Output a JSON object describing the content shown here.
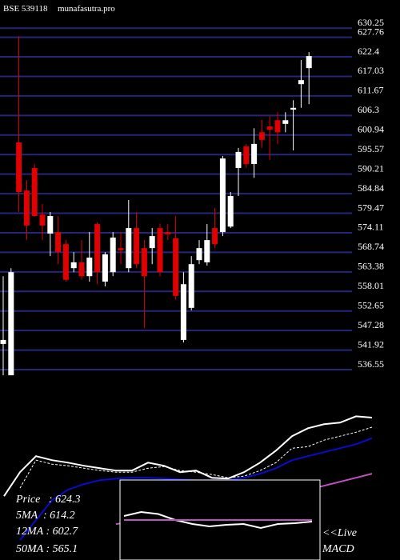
{
  "chart_data": [
    {
      "type": "candlestick",
      "title": "BSE 539118",
      "subtitle": "munafasutra.pro",
      "up_color": "#ffffff",
      "down_color": "#e00000",
      "grid": true,
      "grid_color": "#25257a",
      "ylim": [
        534.8,
        635.8
      ],
      "yticks": [
        630.25,
        627.76,
        622.4,
        617.03,
        611.67,
        606.3,
        600.94,
        595.57,
        590.21,
        584.84,
        579.47,
        574.11,
        568.74,
        563.38,
        558.01,
        552.65,
        547.28,
        541.92,
        536.55
      ],
      "open": [
        543.6,
        535,
        598.9,
        585.7,
        591.9,
        579.1,
        573.9,
        574.3,
        571.0,
        564.4,
        566.0,
        562.2,
        576.5,
        560.7,
        563.3,
        569.9,
        564.4,
        575.4,
        569.9,
        569.9,
        575.4,
        574.3,
        572.6,
        544.7,
        553.5,
        566.6,
        566.0,
        575.4,
        574.3,
        575.8,
        591.9,
        597.8,
        593.0,
        601.7,
        603.3,
        605.0,
        604.0,
        607.9,
        614.9,
        619.3
      ],
      "high": [
        562.2,
        564.4,
        628.1,
        588.6,
        593.0,
        582.0,
        579.8,
        578.7,
        572.1,
        568.8,
        572.1,
        574.3,
        577.0,
        568.8,
        574.3,
        574.3,
        583.1,
        579.8,
        572.1,
        575.4,
        576.5,
        576.5,
        578.7,
        563.3,
        567.7,
        572.1,
        576.5,
        580.9,
        595.2,
        585.3,
        597.4,
        598.5,
        602.8,
        605.1,
        606.1,
        607.2,
        607.2,
        610.5,
        621.5,
        623.7
      ],
      "low": [
        535,
        535,
        579.8,
        572.1,
        578.5,
        572.1,
        567.7,
        565.5,
        560.7,
        563.3,
        561.2,
        560.7,
        560.0,
        559.4,
        562.2,
        565.5,
        563.3,
        564.4,
        548.0,
        565.5,
        562.2,
        572.1,
        555.7,
        544.0,
        552.8,
        565.5,
        565.1,
        569.9,
        573.2,
        575.4,
        584.2,
        591.9,
        589.2,
        597.4,
        594.1,
        598.5,
        601.7,
        596.7,
        608.4,
        609.4
      ],
      "close": [
        544.7,
        563.3,
        585.3,
        576.1,
        578.7,
        576.1,
        578.7,
        568.8,
        561.2,
        566.0,
        562.2,
        567.3,
        563.3,
        568.2,
        572.8,
        569.3,
        575.4,
        565.5,
        562.2,
        573.2,
        563.3,
        573.7,
        556.8,
        560.0,
        565.5,
        569.9,
        572.1,
        571.0,
        594.5,
        584.2,
        596.3,
        593.0,
        598.5,
        599.6,
        602.4,
        601.7,
        605.0,
        608.4,
        616.0,
        622.6
      ]
    },
    {
      "type": "line",
      "ylim": [
        474,
        626
      ],
      "series": [
        {
          "name": "Price   : 624.3",
          "color": "#ffffff",
          "style": "solid",
          "values": [
            541.4,
            566.7,
            583.6,
            579.4,
            576.8,
            573.5,
            570.9,
            568.4,
            568.4,
            576.8,
            573.5,
            566.7,
            568.4,
            560.8,
            560.0,
            566.7,
            576.8,
            589.5,
            604.7,
            613.1,
            617.3,
            619.0,
            625.7,
            624.3
          ]
        },
        {
          "name": "5MA  : 614.2",
          "color": "#ffffff",
          "style": "dashed",
          "values": [
            null,
            549.9,
            579.4,
            575.2,
            573.5,
            570.9,
            568.4,
            566.7,
            566.7,
            570.9,
            572.6,
            568.4,
            566.7,
            564.2,
            560.8,
            562.5,
            568.4,
            576.8,
            592.0,
            593.7,
            600.5,
            604.7,
            608.9,
            614.2
          ]
        },
        {
          "name": "12MA : 602.7",
          "color": "#0a0ad0",
          "style": "solid",
          "values": [
            null,
            495.1,
            516.2,
            537.2,
            548.2,
            554.1,
            558.3,
            560.0,
            560.8,
            560.8,
            560.0,
            559.1,
            558.3,
            558.3,
            558.3,
            560.8,
            565.0,
            570.9,
            579.4,
            583.6,
            587.8,
            592.0,
            596.2,
            602.7
          ]
        },
        {
          "name": "50MA : 565.1",
          "color": "#c050c0",
          "style": "solid",
          "values": [
            null,
            null,
            null,
            null,
            null,
            null,
            null,
            511.9,
            514.5,
            517.8,
            520.4,
            522.9,
            525.4,
            528.0,
            531.3,
            534.7,
            538.1,
            541.4,
            544.8,
            548.2,
            552.4,
            556.6,
            560.8,
            565.1
          ]
        }
      ]
    },
    {
      "type": "line",
      "ylim": [
        -10,
        10
      ],
      "annotations": [
        "<<Live",
        "MACD"
      ],
      "series": [
        {
          "color": "#ffffff",
          "style": "solid",
          "values": [
            1,
            2,
            1.5,
            0,
            -1,
            -1.6,
            -1.2,
            -1,
            -2,
            -1,
            -0.8,
            -0.4
          ]
        },
        {
          "color": "#c050c0",
          "style": "solid",
          "values": [
            0,
            0,
            0,
            0,
            0,
            0,
            0,
            0,
            0,
            0,
            0,
            0
          ]
        }
      ]
    }
  ]
}
